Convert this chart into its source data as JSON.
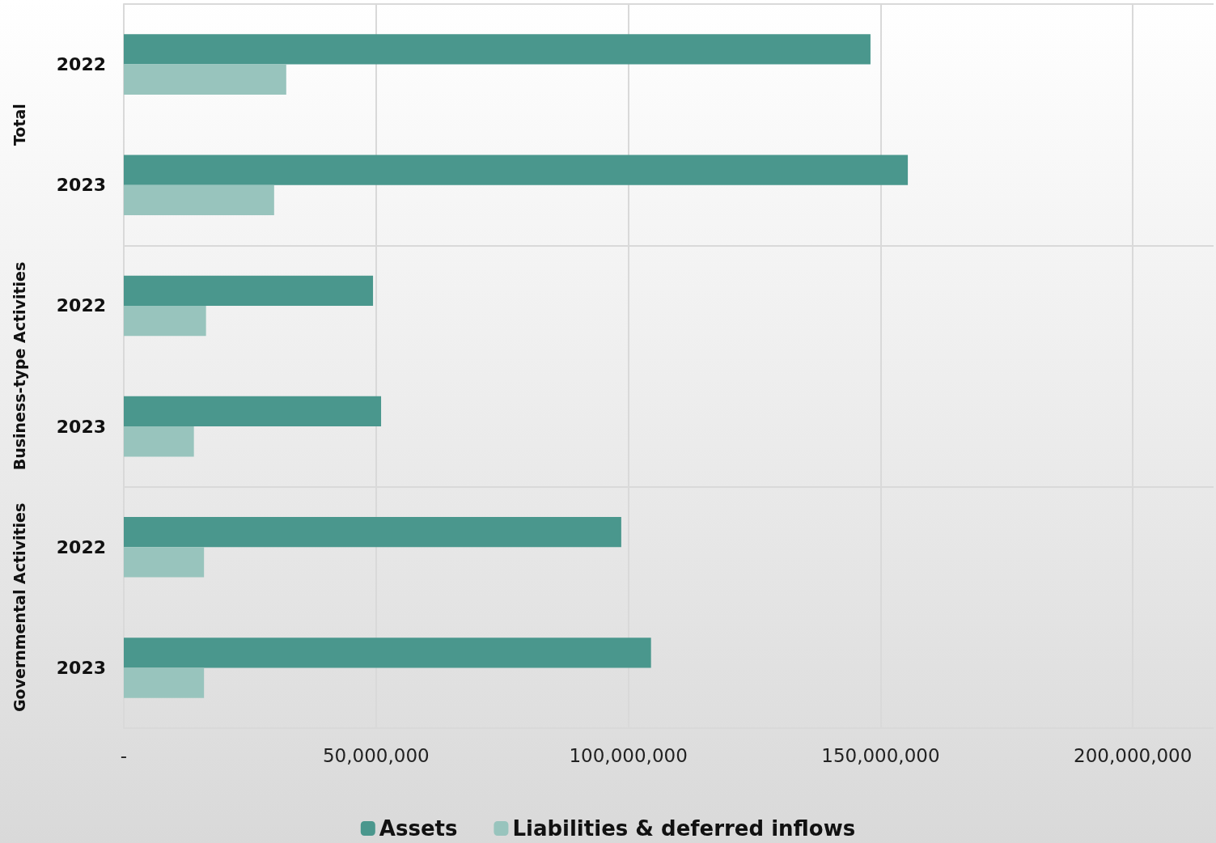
{
  "chart_data": {
    "type": "bar",
    "orientation": "horizontal",
    "categories": [
      "2022",
      "2023",
      "2022",
      "2023",
      "2022",
      "2023"
    ],
    "annotations": [
      "Total",
      "Business-type Activities",
      "Governmental Activities"
    ],
    "series": [
      {
        "name": "Assets",
        "color": "#4a978d",
        "values": [
          148000000,
          155400000,
          49400000,
          51000000,
          98600000,
          104500000
        ]
      },
      {
        "name": "Liabilities & deferred inflows",
        "color": "#98c4bd",
        "values": [
          32200000,
          29800000,
          16300000,
          13900000,
          15900000,
          15900000
        ]
      }
    ],
    "xlim": [
      0,
      216000000
    ],
    "xticks": [
      {
        "value": 0,
        "label": "-"
      },
      {
        "value": 50000000,
        "label": "50,000,000"
      },
      {
        "value": 100000000,
        "label": "100,000,000"
      },
      {
        "value": 150000000,
        "label": "150,000,000"
      },
      {
        "value": 200000000,
        "label": "200,000,000"
      }
    ],
    "grid": "x",
    "legend": "bottom"
  }
}
